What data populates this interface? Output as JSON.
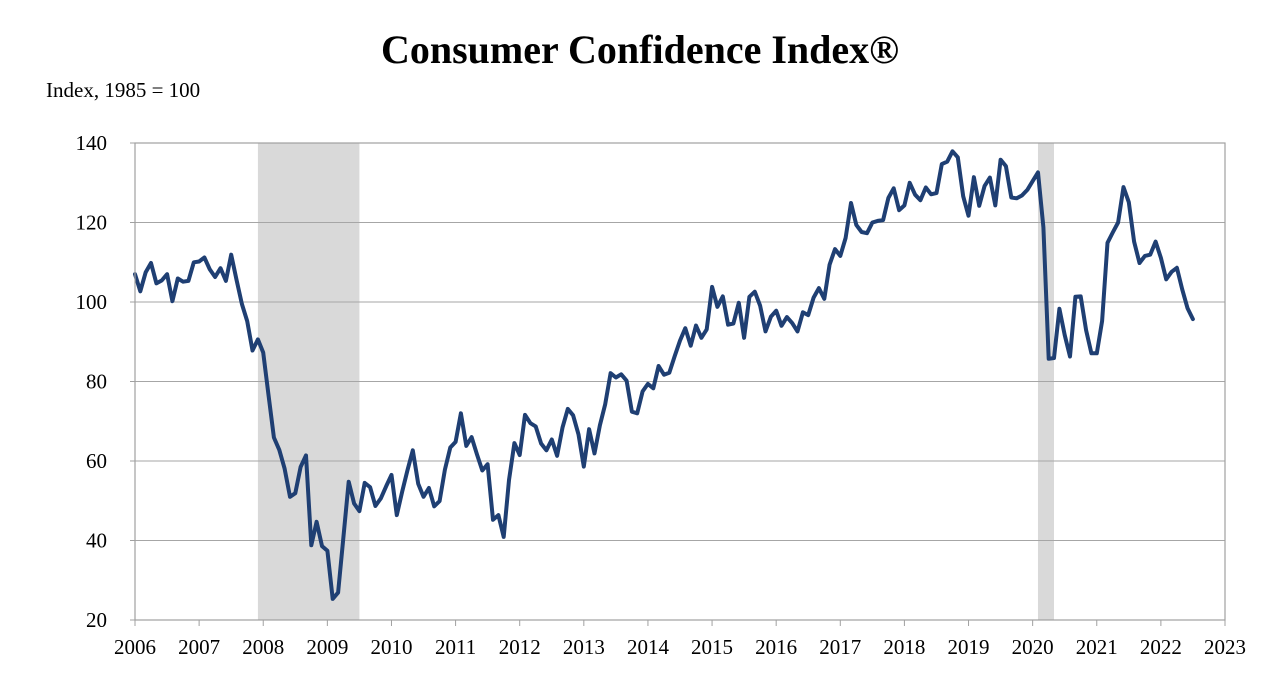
{
  "chart_data": {
    "type": "line",
    "title": "Consumer Confidence Index®",
    "ylabel": "Index, 1985 = 100",
    "xlabel": "",
    "ylim": [
      20,
      140
    ],
    "yticks": [
      20,
      40,
      60,
      80,
      100,
      120,
      140
    ],
    "xlim": [
      2006,
      2023
    ],
    "xticks": [
      "2006",
      "2007",
      "2008",
      "2009",
      "2010",
      "2011",
      "2012",
      "2013",
      "2014",
      "2015",
      "2016",
      "2017",
      "2018",
      "2019",
      "2020",
      "2021",
      "2022",
      "2023"
    ],
    "grid": true,
    "legend": "none",
    "line_color": "#1f3f73",
    "recession_color": "#d9d9d9",
    "recessions": [
      [
        2007.917,
        2009.5
      ],
      [
        2020.083,
        2020.333
      ]
    ],
    "series": [
      {
        "points": [
          [
            2006.0,
            107
          ],
          [
            2006.083,
            102.7
          ],
          [
            2006.167,
            107.5
          ],
          [
            2006.25,
            109.8
          ],
          [
            2006.333,
            104.7
          ],
          [
            2006.417,
            105.4
          ],
          [
            2006.5,
            107
          ],
          [
            2006.583,
            100.2
          ],
          [
            2006.667,
            105.9
          ],
          [
            2006.75,
            105.1
          ],
          [
            2006.833,
            105.3
          ],
          [
            2006.917,
            110
          ],
          [
            2007.0,
            110.2
          ],
          [
            2007.083,
            111.2
          ],
          [
            2007.167,
            108.2
          ],
          [
            2007.25,
            106.3
          ],
          [
            2007.333,
            108.5
          ],
          [
            2007.417,
            105.3
          ],
          [
            2007.5,
            111.9
          ],
          [
            2007.583,
            105.6
          ],
          [
            2007.667,
            99.5
          ],
          [
            2007.75,
            95.2
          ],
          [
            2007.833,
            87.8
          ],
          [
            2007.917,
            90.6
          ],
          [
            2008.0,
            87.3
          ],
          [
            2008.083,
            76.4
          ],
          [
            2008.167,
            65.9
          ],
          [
            2008.25,
            62.8
          ],
          [
            2008.333,
            58.1
          ],
          [
            2008.417,
            51
          ],
          [
            2008.5,
            51.9
          ],
          [
            2008.583,
            58.5
          ],
          [
            2008.667,
            61.4
          ],
          [
            2008.75,
            38.8
          ],
          [
            2008.833,
            44.7
          ],
          [
            2008.917,
            38.6
          ],
          [
            2009.0,
            37.4
          ],
          [
            2009.083,
            25.3
          ],
          [
            2009.167,
            26.9
          ],
          [
            2009.25,
            40.8
          ],
          [
            2009.333,
            54.8
          ],
          [
            2009.417,
            49.3
          ],
          [
            2009.5,
            47.4
          ],
          [
            2009.583,
            54.5
          ],
          [
            2009.667,
            53.4
          ],
          [
            2009.75,
            48.7
          ],
          [
            2009.833,
            50.6
          ],
          [
            2009.917,
            53.6
          ],
          [
            2010.0,
            56.5
          ],
          [
            2010.083,
            46.4
          ],
          [
            2010.167,
            52.3
          ],
          [
            2010.25,
            57.7
          ],
          [
            2010.333,
            62.7
          ],
          [
            2010.417,
            54.3
          ],
          [
            2010.5,
            51
          ],
          [
            2010.583,
            53.2
          ],
          [
            2010.667,
            48.6
          ],
          [
            2010.75,
            49.9
          ],
          [
            2010.833,
            57.8
          ],
          [
            2010.917,
            63.4
          ],
          [
            2011.0,
            64.8
          ],
          [
            2011.083,
            72
          ],
          [
            2011.167,
            63.8
          ],
          [
            2011.25,
            66
          ],
          [
            2011.333,
            61.7
          ],
          [
            2011.417,
            57.6
          ],
          [
            2011.5,
            59.2
          ],
          [
            2011.583,
            45.2
          ],
          [
            2011.667,
            46.4
          ],
          [
            2011.75,
            40.9
          ],
          [
            2011.833,
            55.2
          ],
          [
            2011.917,
            64.5
          ],
          [
            2012.0,
            61.5
          ],
          [
            2012.083,
            71.6
          ],
          [
            2012.167,
            69.5
          ],
          [
            2012.25,
            68.7
          ],
          [
            2012.333,
            64.4
          ],
          [
            2012.417,
            62.7
          ],
          [
            2012.5,
            65.4
          ],
          [
            2012.583,
            61.3
          ],
          [
            2012.667,
            68.4
          ],
          [
            2012.75,
            73.1
          ],
          [
            2012.833,
            71.5
          ],
          [
            2012.917,
            66.7
          ],
          [
            2013.0,
            58.6
          ],
          [
            2013.083,
            68
          ],
          [
            2013.167,
            61.9
          ],
          [
            2013.25,
            69
          ],
          [
            2013.333,
            74.3
          ],
          [
            2013.417,
            82.1
          ],
          [
            2013.5,
            81
          ],
          [
            2013.583,
            81.8
          ],
          [
            2013.667,
            80.2
          ],
          [
            2013.75,
            72.4
          ],
          [
            2013.833,
            72
          ],
          [
            2013.917,
            77.5
          ],
          [
            2014.0,
            79.4
          ],
          [
            2014.083,
            78.3
          ],
          [
            2014.167,
            83.9
          ],
          [
            2014.25,
            81.7
          ],
          [
            2014.333,
            82.2
          ],
          [
            2014.417,
            86.4
          ],
          [
            2014.5,
            90.3
          ],
          [
            2014.583,
            93.4
          ],
          [
            2014.667,
            89
          ],
          [
            2014.75,
            94.1
          ],
          [
            2014.833,
            91
          ],
          [
            2014.917,
            93.1
          ],
          [
            2015.0,
            103.8
          ],
          [
            2015.083,
            98.8
          ],
          [
            2015.167,
            101.4
          ],
          [
            2015.25,
            94.3
          ],
          [
            2015.333,
            94.6
          ],
          [
            2015.417,
            99.8
          ],
          [
            2015.5,
            91
          ],
          [
            2015.583,
            101.3
          ],
          [
            2015.667,
            102.6
          ],
          [
            2015.75,
            99.1
          ],
          [
            2015.833,
            92.6
          ],
          [
            2015.917,
            96.3
          ],
          [
            2016.0,
            97.8
          ],
          [
            2016.083,
            94
          ],
          [
            2016.167,
            96.2
          ],
          [
            2016.25,
            94.7
          ],
          [
            2016.333,
            92.6
          ],
          [
            2016.417,
            97.4
          ],
          [
            2016.5,
            96.7
          ],
          [
            2016.583,
            101.1
          ],
          [
            2016.667,
            103.5
          ],
          [
            2016.75,
            100.8
          ],
          [
            2016.833,
            109.4
          ],
          [
            2016.917,
            113.3
          ],
          [
            2017.0,
            111.6
          ],
          [
            2017.083,
            116.1
          ],
          [
            2017.167,
            124.9
          ],
          [
            2017.25,
            119.4
          ],
          [
            2017.333,
            117.6
          ],
          [
            2017.417,
            117.3
          ],
          [
            2017.5,
            120
          ],
          [
            2017.583,
            120.4
          ],
          [
            2017.667,
            120.6
          ],
          [
            2017.75,
            126.2
          ],
          [
            2017.833,
            128.6
          ],
          [
            2017.917,
            123.1
          ],
          [
            2018.0,
            124.3
          ],
          [
            2018.083,
            130
          ],
          [
            2018.167,
            127
          ],
          [
            2018.25,
            125.6
          ],
          [
            2018.333,
            128.8
          ],
          [
            2018.417,
            127.1
          ],
          [
            2018.5,
            127.4
          ],
          [
            2018.583,
            134.7
          ],
          [
            2018.667,
            135.3
          ],
          [
            2018.75,
            137.9
          ],
          [
            2018.833,
            136.4
          ],
          [
            2018.917,
            126.6
          ],
          [
            2019.0,
            121.7
          ],
          [
            2019.083,
            131.4
          ],
          [
            2019.167,
            124.2
          ],
          [
            2019.25,
            129.2
          ],
          [
            2019.333,
            131.3
          ],
          [
            2019.417,
            124.3
          ],
          [
            2019.5,
            135.8
          ],
          [
            2019.583,
            134.2
          ],
          [
            2019.667,
            126.3
          ],
          [
            2019.75,
            126.1
          ],
          [
            2019.833,
            126.8
          ],
          [
            2019.917,
            128.2
          ],
          [
            2020.0,
            130.4
          ],
          [
            2020.083,
            132.6
          ],
          [
            2020.167,
            118.8
          ],
          [
            2020.25,
            85.7
          ],
          [
            2020.333,
            85.9
          ],
          [
            2020.417,
            98.3
          ],
          [
            2020.5,
            91.7
          ],
          [
            2020.583,
            86.3
          ],
          [
            2020.667,
            101.3
          ],
          [
            2020.75,
            101.4
          ],
          [
            2020.833,
            92.9
          ],
          [
            2020.917,
            87.1
          ],
          [
            2021.0,
            87.1
          ],
          [
            2021.083,
            95.2
          ],
          [
            2021.167,
            114.9
          ],
          [
            2021.25,
            117.5
          ],
          [
            2021.333,
            120
          ],
          [
            2021.417,
            128.9
          ],
          [
            2021.5,
            125.1
          ],
          [
            2021.583,
            115.2
          ],
          [
            2021.667,
            109.8
          ],
          [
            2021.75,
            111.6
          ],
          [
            2021.833,
            111.9
          ],
          [
            2021.917,
            115.2
          ],
          [
            2022.0,
            111.1
          ],
          [
            2022.083,
            105.7
          ],
          [
            2022.167,
            107.6
          ],
          [
            2022.25,
            108.6
          ],
          [
            2022.333,
            103.2
          ],
          [
            2022.417,
            98.4
          ],
          [
            2022.5,
            95.7
          ]
        ]
      }
    ]
  }
}
